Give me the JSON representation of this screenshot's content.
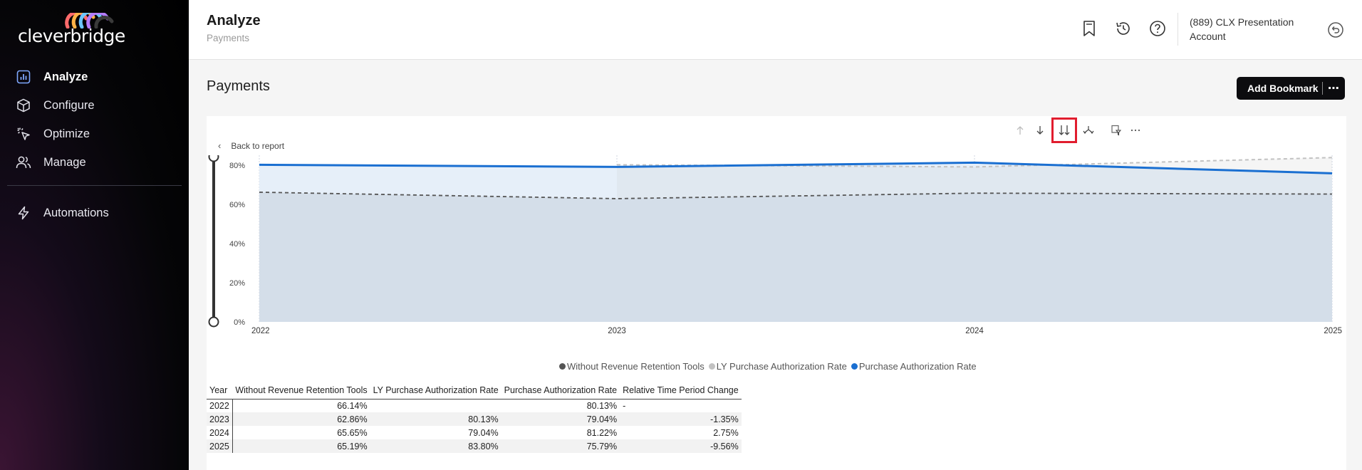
{
  "brand": {
    "name": "cleverbridge"
  },
  "sidebar": {
    "items": [
      {
        "label": "Analyze",
        "icon": "bar-chart-icon",
        "active": true
      },
      {
        "label": "Configure",
        "icon": "cube-icon",
        "active": false
      },
      {
        "label": "Optimize",
        "icon": "cursor-sparkle-icon",
        "active": false
      },
      {
        "label": "Manage",
        "icon": "users-icon",
        "active": false
      }
    ],
    "secondary": [
      {
        "label": "Automations",
        "icon": "bolt-icon"
      }
    ]
  },
  "header": {
    "title": "Analyze",
    "subtitle": "Payments",
    "account": "(889) CLX Presentation Account",
    "icons": [
      "bookmark-icon",
      "history-icon",
      "help-icon",
      "switch-account-icon"
    ]
  },
  "page": {
    "title": "Payments",
    "bookmark_button": "Add Bookmark",
    "more_label": "⋯"
  },
  "visual": {
    "back_label": "Back to report",
    "toolbar_icons": [
      "drill-up-icon",
      "drill-down-icon",
      "expand-all-down-icon",
      "expand-hierarchy-icon",
      "filter-visual-icon",
      "more-options-icon"
    ]
  },
  "chart_data": {
    "type": "area",
    "x": [
      "2022",
      "2023",
      "2024",
      "2025"
    ],
    "y_ticks": [
      "0%",
      "20%",
      "40%",
      "60%",
      "80%"
    ],
    "ylim": [
      0,
      85
    ],
    "series": [
      {
        "name": "Without Revenue Retention Tools",
        "values": [
          66.14,
          62.86,
          65.65,
          65.19
        ],
        "color": "#555555",
        "style": "dashed"
      },
      {
        "name": "LY Purchase Authorization Rate",
        "values": [
          null,
          80.13,
          79.04,
          83.8
        ],
        "color": "#c2c2c2",
        "style": "dashed"
      },
      {
        "name": "Purchase Authorization Rate",
        "values": [
          80.13,
          79.04,
          81.22,
          75.79
        ],
        "color": "#1a6fd1",
        "style": "solid"
      }
    ],
    "legend_position": "bottom"
  },
  "table": {
    "headers": [
      "Year",
      "Without Revenue Retention Tools",
      "LY Purchase Authorization Rate",
      "Purchase Authorization Rate",
      "Relative Time Period Change"
    ],
    "rows": [
      [
        "2022",
        "66.14%",
        "",
        "80.13%",
        "-"
      ],
      [
        "2023",
        "62.86%",
        "80.13%",
        "79.04%",
        "-1.35%"
      ],
      [
        "2024",
        "65.65%",
        "79.04%",
        "81.22%",
        "2.75%"
      ],
      [
        "2025",
        "65.19%",
        "83.80%",
        "75.79%",
        "-9.56%"
      ]
    ]
  }
}
